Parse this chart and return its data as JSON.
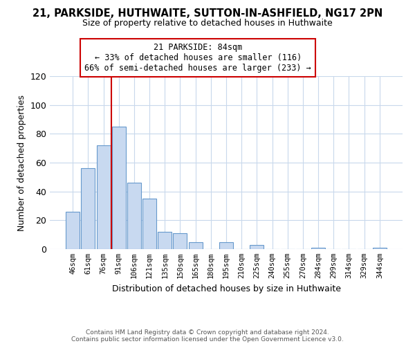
{
  "title": "21, PARKSIDE, HUTHWAITE, SUTTON-IN-ASHFIELD, NG17 2PN",
  "subtitle": "Size of property relative to detached houses in Huthwaite",
  "xlabel": "Distribution of detached houses by size in Huthwaite",
  "ylabel": "Number of detached properties",
  "bin_labels": [
    "46sqm",
    "61sqm",
    "76sqm",
    "91sqm",
    "106sqm",
    "121sqm",
    "135sqm",
    "150sqm",
    "165sqm",
    "180sqm",
    "195sqm",
    "210sqm",
    "225sqm",
    "240sqm",
    "255sqm",
    "270sqm",
    "284sqm",
    "299sqm",
    "314sqm",
    "329sqm",
    "344sqm"
  ],
  "bar_values": [
    26,
    56,
    72,
    85,
    46,
    35,
    12,
    11,
    5,
    0,
    5,
    0,
    3,
    0,
    0,
    0,
    1,
    0,
    0,
    0,
    1
  ],
  "bar_color": "#c8d9f0",
  "bar_edge_color": "#6699cc",
  "vline_color": "#cc0000",
  "annotation_title": "21 PARKSIDE: 84sqm",
  "annotation_line1": "← 33% of detached houses are smaller (116)",
  "annotation_line2": "66% of semi-detached houses are larger (233) →",
  "annotation_box_color": "#ffffff",
  "annotation_box_edge": "#cc0000",
  "ylim": [
    0,
    120
  ],
  "yticks": [
    0,
    20,
    40,
    60,
    80,
    100,
    120
  ],
  "footer_line1": "Contains HM Land Registry data © Crown copyright and database right 2024.",
  "footer_line2": "Contains public sector information licensed under the Open Government Licence v3.0.",
  "bg_color": "#ffffff",
  "grid_color": "#c8d8ec"
}
